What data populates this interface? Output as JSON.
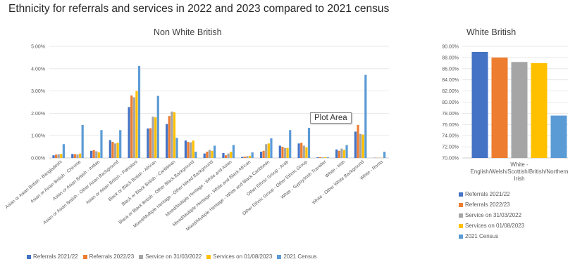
{
  "title": "Ethnicity for referrals and services in 2022 and 2023 compared to 2021 census",
  "tooltip": "Plot Area",
  "colors": [
    "#4472c4",
    "#ed7d31",
    "#a5a5a5",
    "#ffc000",
    "#5b9bd5"
  ],
  "chart_data": [
    {
      "type": "bar",
      "title": "Non White British",
      "ylim": [
        0,
        5
      ],
      "yticks": [
        "0.00%",
        "1.00%",
        "2.00%",
        "3.00%",
        "4.00%",
        "5.00%"
      ],
      "legend_position": "bottom",
      "categories": [
        "Asian or Asian British - Bangladeshi",
        "Asian or Asian British - Chinese",
        "Asian or Asian British - Indian",
        "Asian or Asian British - Other Asian Background",
        "Asian or Asian British - Pakistani",
        "Black or Black British - African",
        "Black or Black British - Caribbean",
        "Black or Black British - Other Black Background",
        "Mixed/Multiple Heritage - Other Mixed Background",
        "Mixed/Multiple Heritage - White and Asian",
        "Mixed/Multiple Heritage - White and Black African",
        "Mixed/Multiple Heritage - White and Black Caribbean",
        "Other Ethnic Group - Arab",
        "Other Ethnic Group - Other Ethnic Group",
        "White - Gypsy/Irish Traveller",
        "White - Irish",
        "White - Other White Background",
        "White - Roma"
      ],
      "series": [
        {
          "name": "Referrals 2021/22",
          "values": [
            0.12,
            0.18,
            0.32,
            0.8,
            2.28,
            1.32,
            1.52,
            0.78,
            0.2,
            0.22,
            0.05,
            0.28,
            0.55,
            0.65,
            0.03,
            0.38,
            1.18,
            0.01
          ]
        },
        {
          "name": "Referrals 2022/23",
          "values": [
            0.15,
            0.17,
            0.35,
            0.72,
            2.8,
            1.33,
            1.88,
            0.72,
            0.28,
            0.12,
            0.06,
            0.32,
            0.5,
            0.68,
            0.04,
            0.32,
            1.48,
            0.01
          ]
        },
        {
          "name": "Service on 31/03/2022",
          "values": [
            0.17,
            0.16,
            0.3,
            0.65,
            2.72,
            1.85,
            2.08,
            0.7,
            0.36,
            0.2,
            0.08,
            0.62,
            0.45,
            0.55,
            0.03,
            0.42,
            1.08,
            0.01
          ]
        },
        {
          "name": "Services on 01/08/2023",
          "values": [
            0.18,
            0.2,
            0.25,
            0.68,
            3.0,
            1.82,
            2.05,
            0.78,
            0.32,
            0.28,
            0.1,
            0.65,
            0.45,
            0.48,
            0.03,
            0.36,
            1.05,
            0.01
          ]
        },
        {
          "name": "2021 Census",
          "values": [
            0.62,
            1.48,
            1.25,
            1.25,
            4.12,
            2.78,
            0.9,
            0.28,
            0.55,
            0.58,
            0.25,
            0.88,
            1.25,
            1.35,
            0.03,
            0.58,
            3.72,
            0.28
          ]
        }
      ]
    },
    {
      "type": "bar",
      "title": "White British",
      "ylim": [
        70,
        90
      ],
      "yticks": [
        "70.00%",
        "72.00%",
        "74.00%",
        "76.00%",
        "78.00%",
        "80.00%",
        "82.00%",
        "84.00%",
        "86.00%",
        "88.00%",
        "90.00%"
      ],
      "legend_position": "bottom",
      "category_lines": [
        "White -",
        "English/Welsh/Scottish/British/Northern",
        "Irish"
      ],
      "series": [
        {
          "name": "Referrals 2021/22",
          "values": [
            89.0
          ]
        },
        {
          "name": "Referrals 2022/23",
          "values": [
            88.0
          ]
        },
        {
          "name": "Service on 31/03/2022",
          "values": [
            87.2
          ]
        },
        {
          "name": "Services on 01/08/2023",
          "values": [
            87.0
          ]
        },
        {
          "name": "2021 Census",
          "values": [
            77.6
          ]
        }
      ]
    }
  ]
}
